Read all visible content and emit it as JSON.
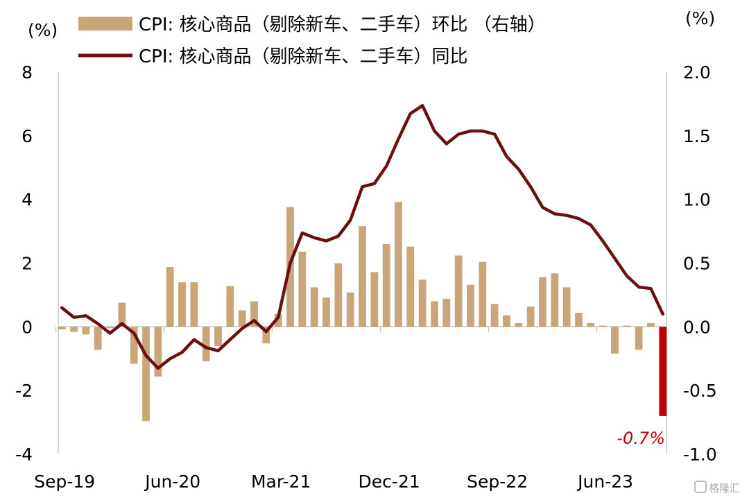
{
  "chart_data": {
    "type": "bar+line",
    "left_unit": "(%)",
    "right_unit": "(%)",
    "left_ylim": [
      -4,
      8
    ],
    "left_ticks": [
      "8",
      "6",
      "4",
      "2",
      "0",
      "-2",
      "-4"
    ],
    "right_ylim": [
      -1.0,
      2.0
    ],
    "right_ticks": [
      "2.0",
      "1.5",
      "1.0",
      "0.5",
      "0.0",
      "-0.5",
      "-1.0"
    ],
    "x_tick_labels": [
      "Sep-19",
      "Jun-20",
      "Mar-21",
      "Dec-21",
      "Sep-22",
      "Jun-23"
    ],
    "x_tick_indices": [
      0,
      9,
      18,
      27,
      36,
      45
    ],
    "grid": false,
    "legend_position": "top",
    "series": [
      {
        "name": "CPI: 核心商品（剔除新车、二手车）环比 （右轴）",
        "kind": "bar",
        "axis": "right",
        "color": "#c9a578",
        "highlight_color": "#c00000",
        "values": [
          -0.02,
          -0.04,
          -0.06,
          -0.18,
          -0.01,
          0.19,
          -0.29,
          -0.74,
          -0.39,
          0.47,
          0.35,
          0.35,
          -0.27,
          -0.15,
          0.32,
          0.13,
          0.2,
          -0.13,
          0.1,
          0.94,
          0.59,
          0.31,
          0.23,
          0.5,
          0.27,
          0.79,
          0.43,
          0.65,
          0.98,
          0.63,
          0.37,
          0.2,
          0.22,
          0.56,
          0.33,
          0.51,
          0.18,
          0.09,
          0.03,
          0.16,
          0.39,
          0.42,
          0.31,
          0.11,
          0.03,
          0.01,
          -0.21,
          0.01,
          -0.18,
          0.03,
          -0.7
        ]
      },
      {
        "name": "CPI: 核心商品（剔除新车、二手车）同比",
        "kind": "line",
        "axis": "left",
        "color": "#6b0f0f",
        "values": [
          0.6,
          0.3,
          0.35,
          0.1,
          -0.2,
          0.1,
          -0.2,
          -0.9,
          -1.3,
          -1.0,
          -0.8,
          -0.4,
          -0.65,
          -0.75,
          -0.4,
          -0.05,
          0.2,
          -0.15,
          0.3,
          2.0,
          2.95,
          2.8,
          2.7,
          2.85,
          3.35,
          4.4,
          4.5,
          5.05,
          5.9,
          6.7,
          6.95,
          6.15,
          5.75,
          6.05,
          6.15,
          6.15,
          6.05,
          5.35,
          4.95,
          4.4,
          3.75,
          3.55,
          3.5,
          3.4,
          3.2,
          2.7,
          2.15,
          1.6,
          1.25,
          1.2,
          0.4
        ]
      }
    ],
    "annotations": [
      {
        "text": "-0.7%",
        "color": "#c00000"
      }
    ]
  },
  "watermark": {
    "text": "格隆汇"
  }
}
